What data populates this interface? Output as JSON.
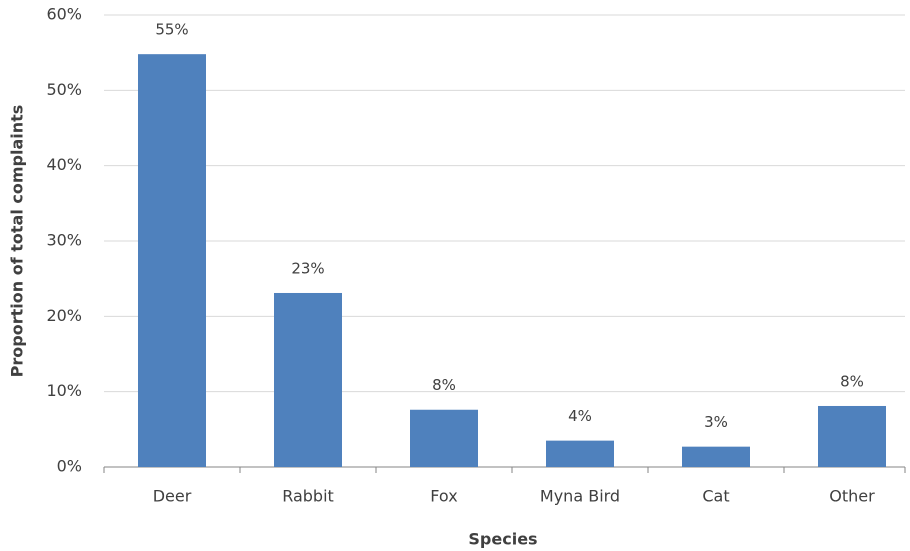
{
  "chart_data": {
    "type": "bar",
    "x_label": "Species",
    "y_label": "Proportion of total complaints",
    "categories": [
      "Deer",
      "Rabbit",
      "Fox",
      "Myna Bird",
      "Cat",
      "Other"
    ],
    "values": [
      54.8,
      23.1,
      7.6,
      3.5,
      2.7,
      8.1
    ],
    "value_labels": [
      "55%",
      "23%",
      "8%",
      "4%",
      "3%",
      "8%"
    ],
    "color": "#4f81bd",
    "ylim": [
      0,
      60
    ],
    "yticks": [
      {
        "value": 0,
        "label": "0%"
      },
      {
        "value": 10,
        "label": "10%"
      },
      {
        "value": 20,
        "label": "20%"
      },
      {
        "value": 30,
        "label": "30%"
      },
      {
        "value": 40,
        "label": "40%"
      },
      {
        "value": 50,
        "label": "50%"
      },
      {
        "value": 60,
        "label": "60%"
      }
    ],
    "grid": true
  }
}
